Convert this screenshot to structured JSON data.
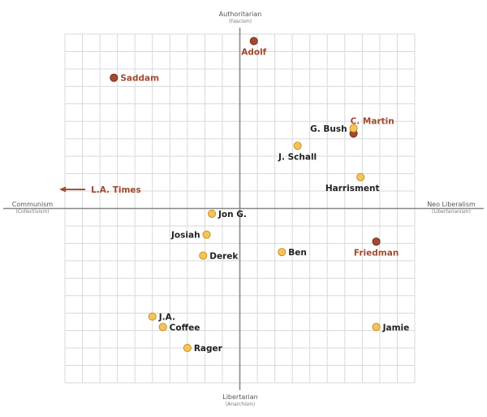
{
  "chart_data": {
    "type": "scatter",
    "axes": {
      "top": {
        "title": "Authoritarian",
        "subtitle": "(Fascism)"
      },
      "bottom": {
        "title": "Libertarian",
        "subtitle": "(Anarchism)"
      },
      "left": {
        "title": "Communism",
        "subtitle": "(Collectivism)"
      },
      "right": {
        "title": "Neo Liberalism",
        "subtitle": "(Libertarianism)"
      }
    },
    "xlim": [
      -10,
      10
    ],
    "ylim": [
      -10,
      10
    ],
    "grid": true,
    "colors": {
      "person": "#f2c45a",
      "person_stroke": "#c98a1e",
      "figure": "#a04a32",
      "figure_stroke": "#6f2a18",
      "person_label": "#222222",
      "figure_label": "#a04a32",
      "axis_line": "#888888",
      "grid": "#d9d9d9"
    },
    "points": [
      {
        "label": "Adolf",
        "x": 0.8,
        "y": 9.6,
        "group": "figure",
        "anchor": "below"
      },
      {
        "label": "Saddam",
        "x": -7.2,
        "y": 7.5,
        "group": "figure",
        "anchor": "right"
      },
      {
        "label": "C. Martin",
        "x": 6.5,
        "y": 4.3,
        "group": "figure",
        "anchor": "right-up"
      },
      {
        "label": "G. Bush",
        "x": 6.5,
        "y": 4.6,
        "group": "person",
        "anchor": "left"
      },
      {
        "label": "J. Schall",
        "x": 3.3,
        "y": 3.6,
        "group": "person",
        "anchor": "below"
      },
      {
        "label": "Harrisment",
        "x": 6.9,
        "y": 1.8,
        "group": "person",
        "anchor": "below-left"
      },
      {
        "label": "Friedman",
        "x": 7.8,
        "y": -1.9,
        "group": "figure",
        "anchor": "below"
      },
      {
        "label": "Jon G.",
        "x": -1.6,
        "y": -0.3,
        "group": "person",
        "anchor": "right"
      },
      {
        "label": "Josiah",
        "x": -1.9,
        "y": -1.5,
        "group": "person",
        "anchor": "left"
      },
      {
        "label": "Derek",
        "x": -2.1,
        "y": -2.7,
        "group": "person",
        "anchor": "right"
      },
      {
        "label": "Ben",
        "x": 2.4,
        "y": -2.5,
        "group": "person",
        "anchor": "right"
      },
      {
        "label": "J.A.",
        "x": -5.0,
        "y": -6.2,
        "group": "person",
        "anchor": "right"
      },
      {
        "label": "Coffee",
        "x": -4.4,
        "y": -6.8,
        "group": "person",
        "anchor": "right"
      },
      {
        "label": "Jamie",
        "x": 7.8,
        "y": -6.8,
        "group": "person",
        "anchor": "right"
      },
      {
        "label": "Rager",
        "x": -3.0,
        "y": -8.0,
        "group": "person",
        "anchor": "right"
      }
    ],
    "annotations": [
      {
        "label": "L.A. Times",
        "x": -10.6,
        "y": 1.0,
        "type": "arrow-left"
      }
    ]
  }
}
